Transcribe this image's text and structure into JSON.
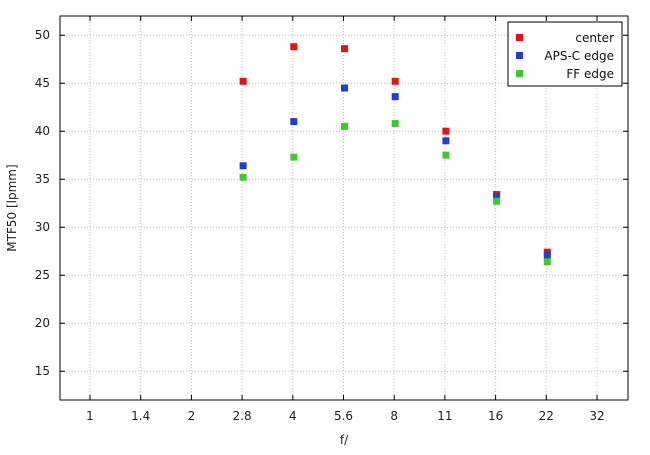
{
  "chart_data": {
    "type": "scatter",
    "title": "",
    "xlabel": "f/",
    "ylabel": "MTF50 [lpmm]",
    "x_scale": "log2",
    "x_ticks": [
      "1",
      "1.4",
      "2",
      "2.8",
      "4",
      "5.6",
      "8",
      "11",
      "16",
      "22",
      "32"
    ],
    "x": [
      "2.8",
      "4",
      "5.6",
      "8",
      "11",
      "16",
      "22"
    ],
    "ylim": [
      12,
      52
    ],
    "y_ticks": [
      15,
      20,
      25,
      30,
      35,
      40,
      45,
      50
    ],
    "grid": true,
    "legend_position": "top-right",
    "series": [
      {
        "name": "center",
        "color": "#e8130f",
        "values": [
          45.2,
          48.8,
          48.6,
          45.2,
          40.0,
          33.4,
          27.4
        ]
      },
      {
        "name": "APS-C edge",
        "color": "#1c3fd6",
        "values": [
          36.4,
          41.0,
          44.5,
          43.6,
          39.0,
          33.2,
          27.1
        ]
      },
      {
        "name": "FF edge",
        "color": "#3ccc2a",
        "values": [
          35.2,
          37.3,
          40.5,
          40.8,
          37.5,
          32.7,
          26.4
        ]
      }
    ]
  }
}
